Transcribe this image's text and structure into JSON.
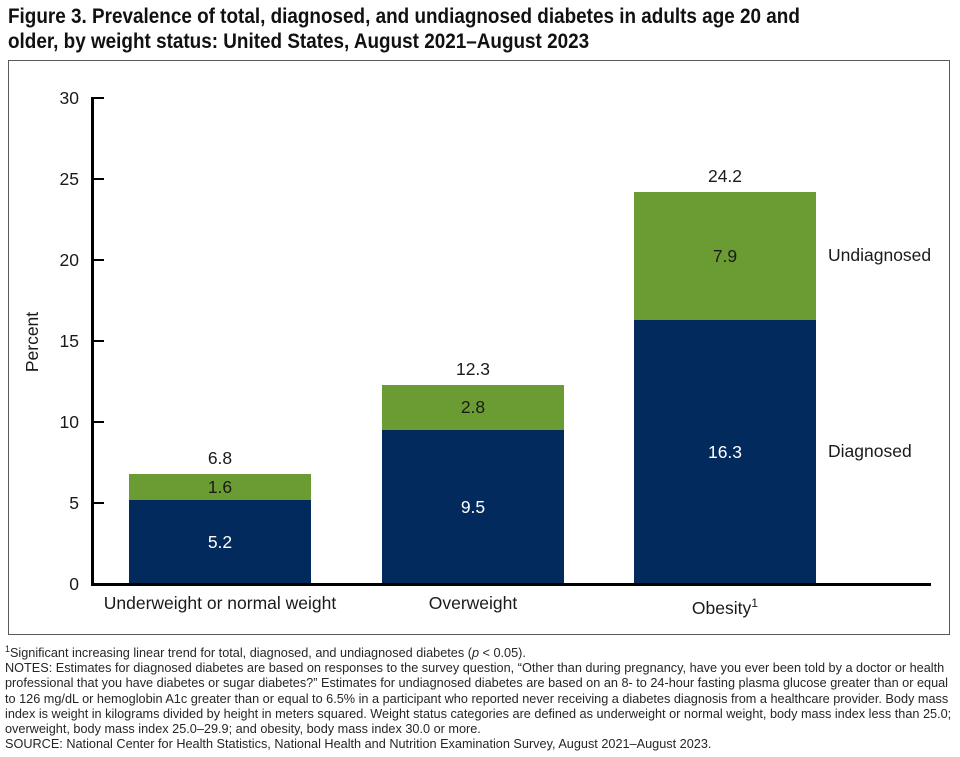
{
  "figure": {
    "title_lines": [
      "Figure 3. Prevalence of total, diagnosed, and undiagnosed diabetes in adults age 20 and",
      "older, by weight status: United States, August 2021–August 2023"
    ]
  },
  "chart_data": {
    "type": "bar",
    "stacked": true,
    "title": "Prevalence of total, diagnosed, and undiagnosed diabetes in adults age 20 and older, by weight status",
    "categories": [
      "Underweight or normal weight",
      "Overweight",
      "Obesity"
    ],
    "category_superscripts": [
      "",
      "",
      "1"
    ],
    "series": [
      {
        "name": "Diagnosed",
        "values": [
          5.2,
          9.5,
          16.3
        ],
        "color": "#022a5c",
        "label_color": "#ffffff"
      },
      {
        "name": "Undiagnosed",
        "values": [
          1.6,
          2.8,
          7.9
        ],
        "color": "#6b9b33",
        "label_color": "#1a1a1a"
      }
    ],
    "totals": [
      6.8,
      12.3,
      24.2
    ],
    "xlabel": "",
    "ylabel": "Percent",
    "ylim": [
      0,
      30
    ],
    "yticks": [
      0,
      5,
      10,
      15,
      20,
      25,
      30
    ],
    "grid": false,
    "legend_position": "right-of-last-bar",
    "value_labels_shown": true
  },
  "footnotes": {
    "trend_sup": "1",
    "trend_pre": "Significant increasing linear trend for total, diagnosed, and undiagnosed diabetes (",
    "trend_italic": "p",
    "trend_post": " < 0.05).",
    "notes": "NOTES: Estimates for diagnosed diabetes are based on responses to the survey question, “Other than during pregnancy, have you ever been told by a doctor or health professional that you have diabetes or sugar diabetes?” Estimates for undiagnosed diabetes are based on an 8- to 24-hour fasting plasma glucose greater than or equal to 126 mg/dL or hemoglobin A1c greater than or equal to 6.5% in a participant who reported never receiving a diabetes diagnosis from a healthcare provider. Body mass index is weight in kilograms divided by height in meters squared. Weight status categories are defined as underweight or normal weight, body mass index less than 25.0; overweight, body mass index 25.0–29.9; and obesity, body mass index 30.0 or more.",
    "source": "SOURCE: National Center for Health Statistics, National Health and Nutrition Examination Survey, August 2021–August 2023."
  }
}
